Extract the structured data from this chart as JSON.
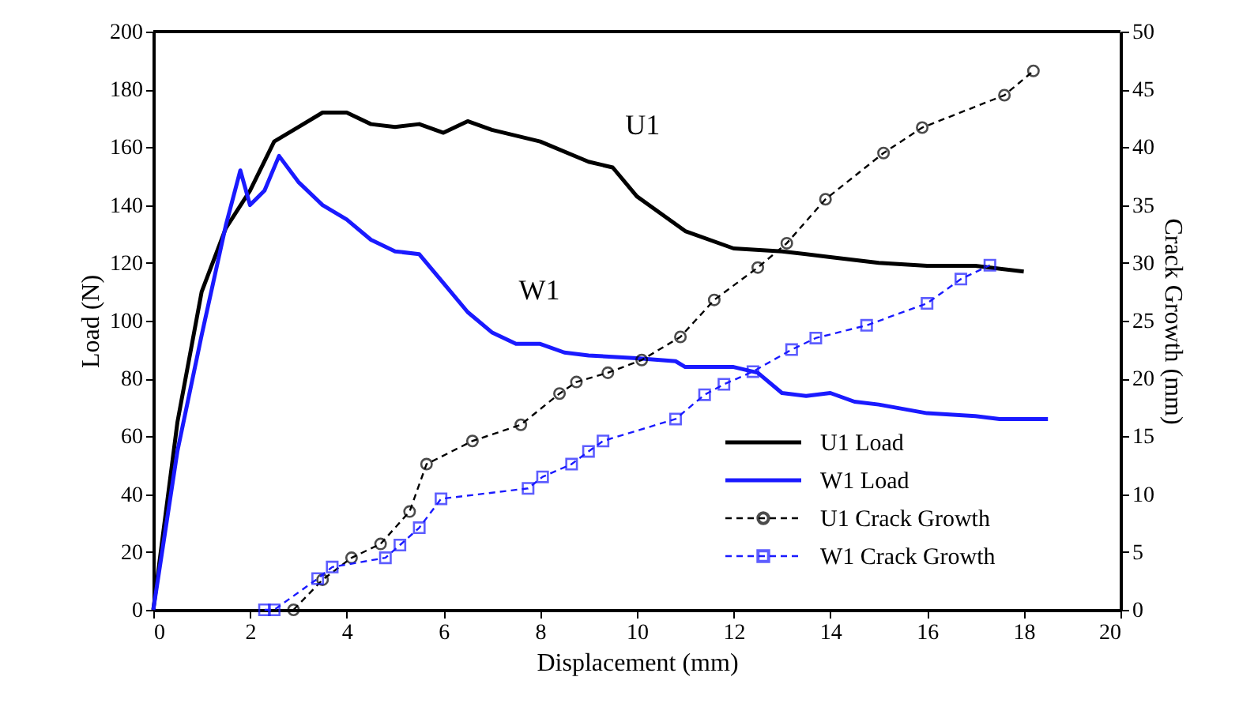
{
  "chart_data": {
    "type": "line",
    "xlabel": "Displacement (mm)",
    "ylabel": "Load (N)",
    "y2label": "Crack Growth (mm)",
    "xlim": [
      0,
      20
    ],
    "xticks": [
      0,
      2,
      4,
      6,
      8,
      10,
      12,
      14,
      16,
      18,
      20
    ],
    "ylim": [
      0,
      200
    ],
    "yticks": [
      0,
      20,
      40,
      60,
      80,
      100,
      120,
      140,
      160,
      180,
      200
    ],
    "y2lim": [
      0,
      50
    ],
    "y2ticks": [
      0,
      5,
      10,
      15,
      20,
      25,
      30,
      35,
      40,
      45,
      50
    ],
    "grid": false,
    "legend": "bottom right",
    "annotations": [
      {
        "text": "U1",
        "x": 9.3,
        "y": 153
      },
      {
        "text": "W1",
        "x": 7.1,
        "y": 96
      }
    ],
    "series": [
      {
        "name": "U1 Load",
        "color": "#000000",
        "line_style": "solid",
        "marker": "none",
        "x": [
          0,
          0.5,
          1,
          1.5,
          2,
          2.5,
          3,
          3.5,
          4,
          4.5,
          5,
          5.5,
          6,
          6.5,
          7,
          8,
          9,
          9.5,
          10,
          11,
          12,
          13,
          14,
          15,
          16,
          17,
          18
        ],
        "values": [
          0,
          65,
          110,
          132,
          145,
          162,
          167,
          172,
          172,
          168,
          167,
          168,
          165,
          169,
          166,
          162,
          155,
          153,
          143,
          131,
          125,
          124,
          122,
          120,
          119,
          119,
          117
        ]
      },
      {
        "name": "W1 Load",
        "color": "#1a1aff",
        "line_style": "solid",
        "marker": "none",
        "x": [
          0,
          0.5,
          1,
          1.5,
          1.8,
          2,
          2.3,
          2.6,
          3,
          3.5,
          4,
          4.5,
          5,
          5.5,
          6,
          6.5,
          7,
          7.5,
          8,
          8.5,
          9,
          10,
          10.8,
          11,
          12,
          12.5,
          13,
          13.5,
          14,
          14.5,
          15,
          16,
          17,
          17.5,
          18.5
        ],
        "values": [
          0,
          55,
          95,
          133,
          152,
          140,
          145,
          157,
          148,
          140,
          135,
          128,
          124,
          123,
          113,
          103,
          96,
          92,
          92,
          89,
          88,
          87,
          86,
          84,
          84,
          82,
          75,
          74,
          75,
          72,
          71,
          68,
          67,
          66,
          66
        ]
      },
      {
        "name": "U1 Crack Growth",
        "color": "#000000",
        "axis": "y2",
        "line_style": "dashed",
        "marker": "circle",
        "x": [
          2.9,
          3.5,
          4.1,
          4.7,
          5.3,
          5.65,
          6.6,
          7.6,
          8.4,
          8.75,
          9.4,
          10.1,
          10.9,
          11.6,
          12.5,
          13.1,
          13.9,
          15.1,
          15.9,
          17.6,
          18.2
        ],
        "values": [
          0,
          2.6,
          4.5,
          5.7,
          8.5,
          12.6,
          14.6,
          16,
          18.7,
          19.7,
          20.5,
          21.6,
          23.6,
          26.8,
          29.6,
          31.7,
          35.5,
          39.5,
          41.7,
          44.5,
          46.6
        ]
      },
      {
        "name": "W1 Crack Growth",
        "color": "#1a1aff",
        "axis": "y2",
        "line_style": "dashed",
        "marker": "square",
        "x": [
          2.3,
          2.5,
          3.4,
          3.7,
          4.8,
          5.1,
          5.5,
          5.95,
          7.75,
          8.05,
          8.65,
          9.0,
          9.3,
          10.8,
          11.4,
          11.8,
          12.4,
          13.2,
          13.7,
          14.75,
          16.0,
          16.7,
          17.3
        ],
        "values": [
          0,
          0,
          2.7,
          3.7,
          4.5,
          5.6,
          7.1,
          9.6,
          10.5,
          11.5,
          12.6,
          13.7,
          14.6,
          16.5,
          18.6,
          19.5,
          20.6,
          22.5,
          23.5,
          24.6,
          26.5,
          28.6,
          29.8
        ]
      }
    ]
  }
}
